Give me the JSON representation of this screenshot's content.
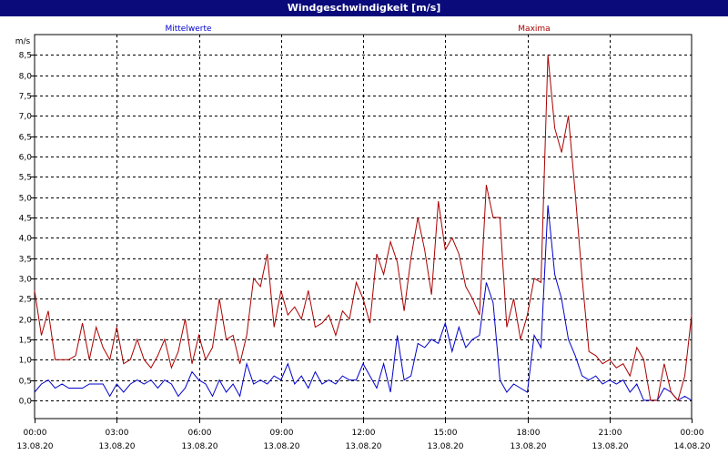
{
  "window": {
    "title": "Windgeschwindigkeit [m/s]"
  },
  "chart_data": {
    "type": "line",
    "title": "Windgeschwindigkeit [m/s]",
    "ylabel": "m/s",
    "xlabel": "",
    "ylim": [
      -0.45,
      9.0
    ],
    "xlim": [
      0,
      24
    ],
    "yticks": [
      "0,0",
      "0,5",
      "1,0",
      "1,5",
      "2,0",
      "2,5",
      "3,0",
      "3,5",
      "4,0",
      "4,5",
      "5,0",
      "5,5",
      "6,0",
      "6,5",
      "7,0",
      "7,5",
      "8,0",
      "8,5"
    ],
    "xticks": [
      {
        "time": "00:00",
        "date": "13.08.20"
      },
      {
        "time": "03:00",
        "date": "13.08.20"
      },
      {
        "time": "06:00",
        "date": "13.08.20"
      },
      {
        "time": "09:00",
        "date": "13.08.20"
      },
      {
        "time": "12:00",
        "date": "13.08.20"
      },
      {
        "time": "15:00",
        "date": "13.08.20"
      },
      {
        "time": "18:00",
        "date": "13.08.20"
      },
      {
        "time": "21:00",
        "date": "13.08.20"
      },
      {
        "time": "00:00",
        "date": "14.08.20"
      }
    ],
    "grid": true,
    "series": [
      {
        "name": "Mittelwerte",
        "color": "#0000cc",
        "x": [
          0,
          0.25,
          0.5,
          0.75,
          1,
          1.25,
          1.5,
          1.75,
          2,
          2.25,
          2.5,
          2.75,
          3,
          3.25,
          3.5,
          3.75,
          4,
          4.25,
          4.5,
          4.75,
          5,
          5.25,
          5.5,
          5.75,
          6,
          6.25,
          6.5,
          6.75,
          7,
          7.25,
          7.5,
          7.75,
          8,
          8.25,
          8.5,
          8.75,
          9,
          9.25,
          9.5,
          9.75,
          10,
          10.25,
          10.5,
          10.75,
          11,
          11.25,
          11.5,
          11.75,
          12,
          12.25,
          12.5,
          12.75,
          13,
          13.25,
          13.5,
          13.75,
          14,
          14.25,
          14.5,
          14.75,
          15,
          15.25,
          15.5,
          15.75,
          16,
          16.25,
          16.5,
          16.75,
          17,
          17.25,
          17.5,
          17.75,
          18,
          18.25,
          18.5,
          18.75,
          19,
          19.25,
          19.5,
          19.75,
          20,
          20.25,
          20.5,
          20.75,
          21,
          21.25,
          21.5,
          21.75,
          22,
          22.25,
          22.5,
          22.75,
          23,
          23.25,
          23.5,
          23.75,
          24
        ],
        "values": [
          0.2,
          0.4,
          0.5,
          0.3,
          0.4,
          0.3,
          0.3,
          0.3,
          0.4,
          0.4,
          0.4,
          0.1,
          0.4,
          0.2,
          0.4,
          0.5,
          0.4,
          0.5,
          0.3,
          0.5,
          0.4,
          0.1,
          0.3,
          0.7,
          0.5,
          0.4,
          0.1,
          0.5,
          0.2,
          0.4,
          0.1,
          0.9,
          0.4,
          0.5,
          0.4,
          0.6,
          0.5,
          0.9,
          0.4,
          0.6,
          0.3,
          0.7,
          0.4,
          0.5,
          0.4,
          0.6,
          0.5,
          0.5,
          0.9,
          0.6,
          0.3,
          0.9,
          0.2,
          1.6,
          0.5,
          0.6,
          1.4,
          1.3,
          1.5,
          1.4,
          1.9,
          1.2,
          1.8,
          1.3,
          1.5,
          1.6,
          2.9,
          2.4,
          0.5,
          0.2,
          0.4,
          0.3,
          0.2,
          1.6,
          1.3,
          4.8,
          3.1,
          2.5,
          1.5,
          1.1,
          0.6,
          0.5,
          0.6,
          0.4,
          0.5,
          0.4,
          0.5,
          0.2,
          0.4,
          0.0,
          0.0,
          0.0,
          0.3,
          0.2,
          0.0,
          0.1,
          0.0
        ],
        "label_position": "top-left"
      },
      {
        "name": "Maxima",
        "color": "#aa0000",
        "x": [
          0,
          0.25,
          0.5,
          0.75,
          1,
          1.25,
          1.5,
          1.75,
          2,
          2.25,
          2.5,
          2.75,
          3,
          3.25,
          3.5,
          3.75,
          4,
          4.25,
          4.5,
          4.75,
          5,
          5.25,
          5.5,
          5.75,
          6,
          6.25,
          6.5,
          6.75,
          7,
          7.25,
          7.5,
          7.75,
          8,
          8.25,
          8.5,
          8.75,
          9,
          9.25,
          9.5,
          9.75,
          10,
          10.25,
          10.5,
          10.75,
          11,
          11.25,
          11.5,
          11.75,
          12,
          12.25,
          12.5,
          12.75,
          13,
          13.25,
          13.5,
          13.75,
          14,
          14.25,
          14.5,
          14.75,
          15,
          15.25,
          15.5,
          15.75,
          16,
          16.25,
          16.5,
          16.75,
          17,
          17.25,
          17.5,
          17.75,
          18,
          18.25,
          18.5,
          18.75,
          19,
          19.25,
          19.5,
          19.75,
          20,
          20.25,
          20.5,
          20.75,
          21,
          21.25,
          21.5,
          21.75,
          22,
          22.25,
          22.5,
          22.75,
          23,
          23.25,
          23.5,
          23.75,
          24
        ],
        "values": [
          2.7,
          1.6,
          2.2,
          1.0,
          1.0,
          1.0,
          1.1,
          1.9,
          1.0,
          1.8,
          1.3,
          1.0,
          1.8,
          0.9,
          1.0,
          1.5,
          1.0,
          0.8,
          1.1,
          1.5,
          0.8,
          1.2,
          2.0,
          0.9,
          1.6,
          1.0,
          1.3,
          2.5,
          1.5,
          1.6,
          0.9,
          1.6,
          3.0,
          2.8,
          3.6,
          1.8,
          2.7,
          2.1,
          2.3,
          2.0,
          2.7,
          1.8,
          1.9,
          2.1,
          1.6,
          2.2,
          2.0,
          2.9,
          2.5,
          1.9,
          3.6,
          3.1,
          3.9,
          3.4,
          2.2,
          3.5,
          4.5,
          3.7,
          2.6,
          4.9,
          3.7,
          4.0,
          3.6,
          2.8,
          2.5,
          2.1,
          5.3,
          4.5,
          4.5,
          1.8,
          2.5,
          1.5,
          2.1,
          3.0,
          2.9,
          8.5,
          6.7,
          6.1,
          7.0,
          5.1,
          3.0,
          1.2,
          1.1,
          0.9,
          1.0,
          0.8,
          0.9,
          0.6,
          1.3,
          1.0,
          0.0,
          0.0,
          0.9,
          0.2,
          0.0,
          0.6,
          2.1
        ],
        "label_position": "top-right"
      }
    ]
  }
}
